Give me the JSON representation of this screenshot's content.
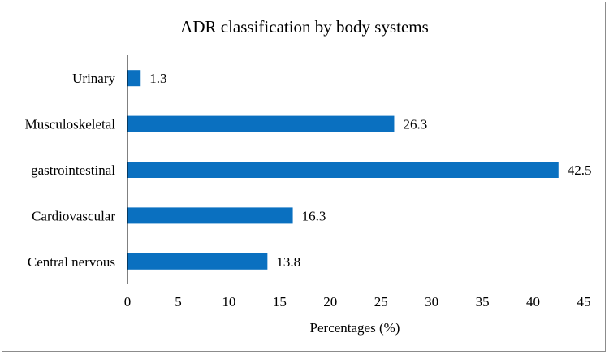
{
  "chart_data": {
    "type": "bar",
    "orientation": "horizontal",
    "title": "ADR classification  by body systems",
    "xlabel": "Percentages (%)",
    "ylabel": "",
    "categories": [
      "Urinary",
      "Musculoskeletal",
      "gastrointestinal",
      "Cardiovascular",
      "Central nervous"
    ],
    "values": [
      1.3,
      26.3,
      42.5,
      16.3,
      13.8
    ],
    "data_labels": [
      "1.3",
      "26.3",
      "42.5",
      "16.3",
      "13.8"
    ],
    "xlim": [
      0,
      45
    ],
    "xticks": [
      "0",
      "5",
      "10",
      "15",
      "20",
      "25",
      "30",
      "35",
      "40",
      "45"
    ],
    "grid": false,
    "legend": "none",
    "bar_color": "#0a70c0"
  }
}
